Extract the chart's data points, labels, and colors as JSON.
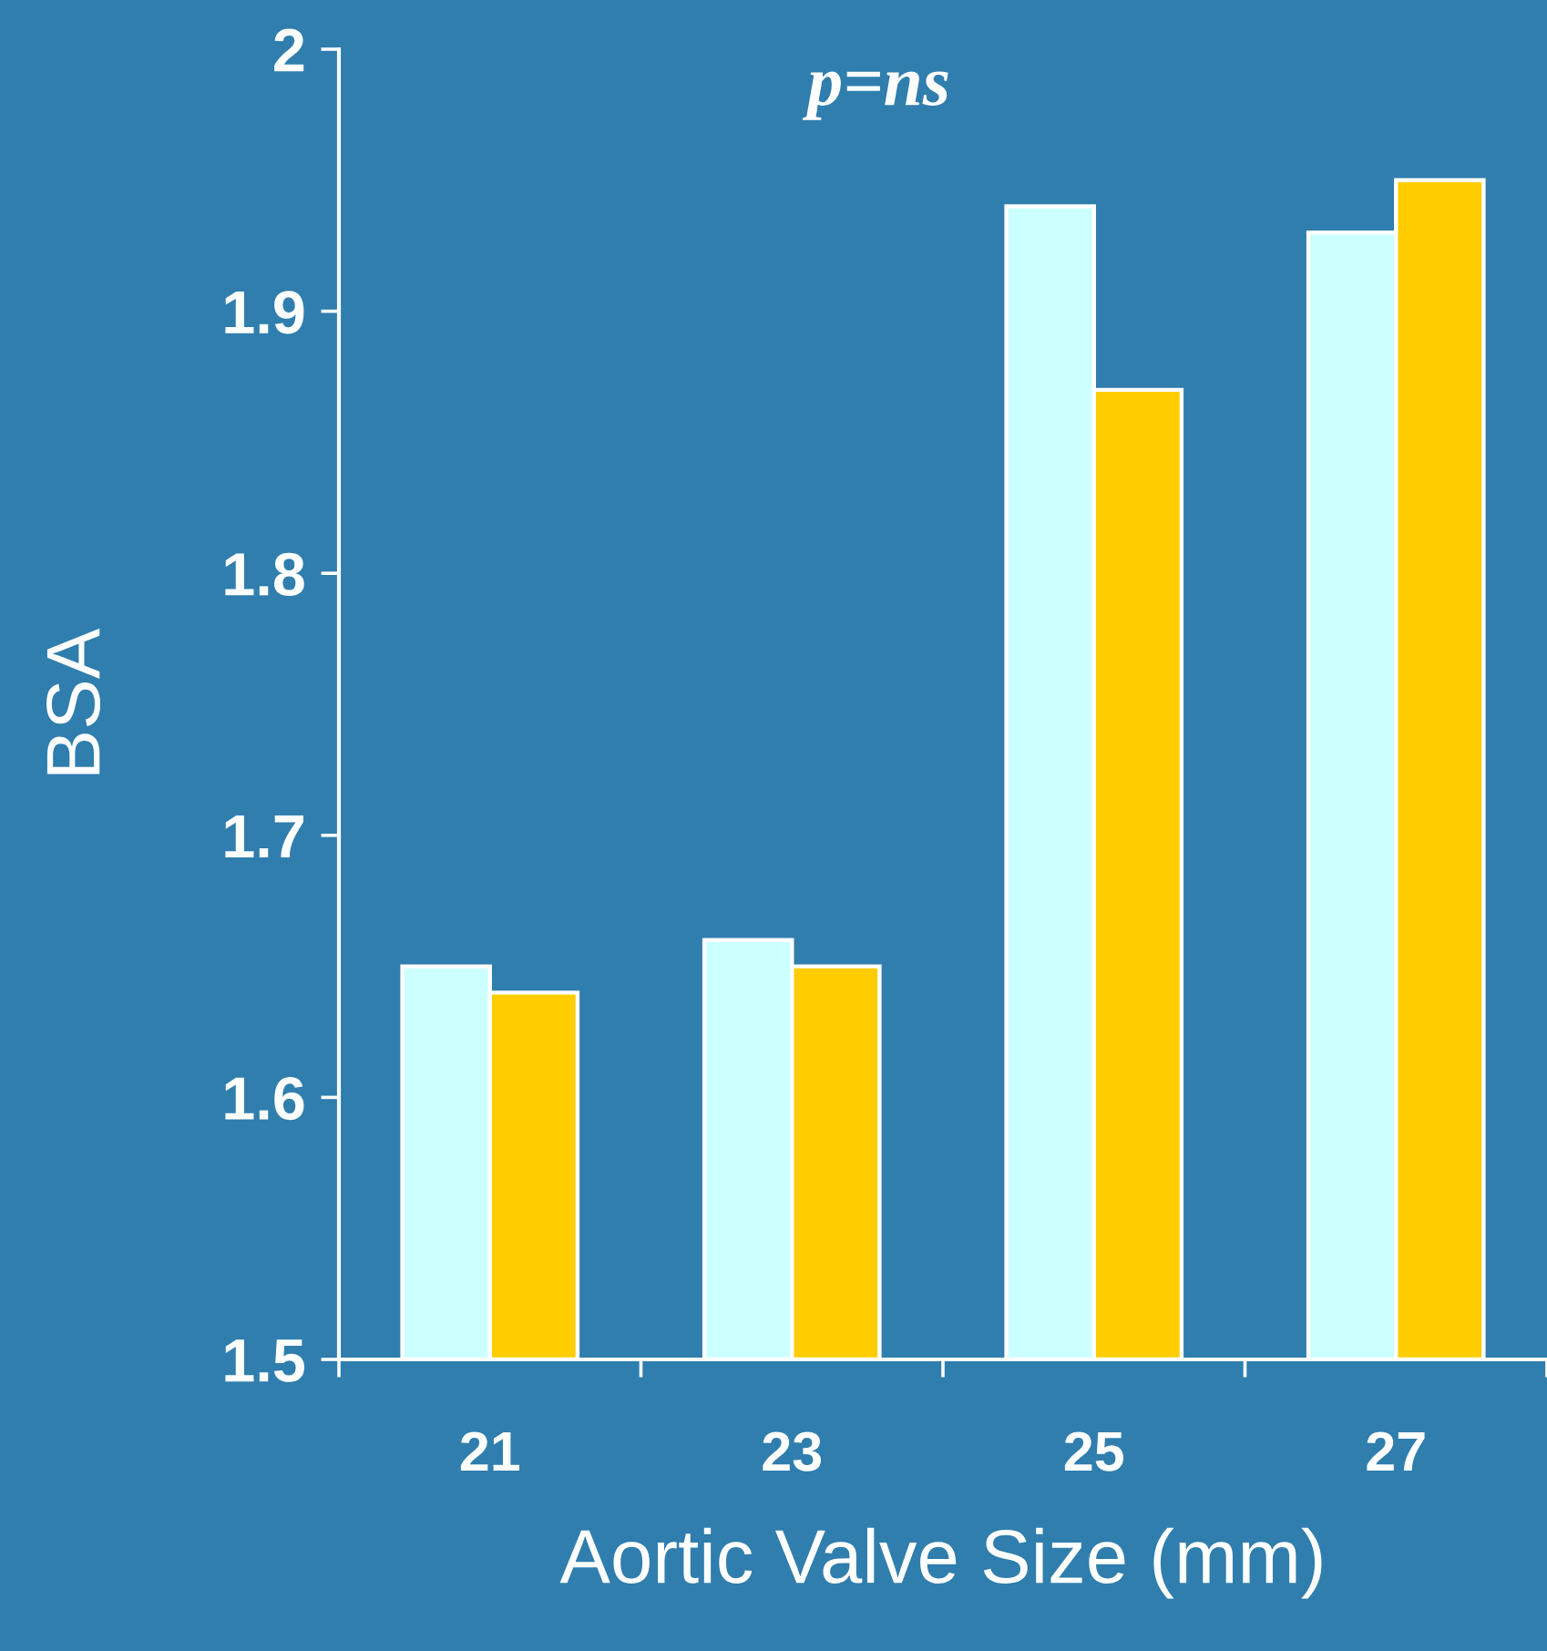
{
  "chart_data": {
    "type": "bar",
    "xlabel": "Aortic Valve Size (mm)",
    "ylabel": "BSA",
    "categories": [
      "21",
      "23",
      "25",
      "27"
    ],
    "series": [
      {
        "color": "#ccffff",
        "values": [
          1.65,
          1.66,
          1.94,
          1.93
        ]
      },
      {
        "color": "#ffcc00",
        "values": [
          1.64,
          1.65,
          1.87,
          1.95
        ]
      }
    ],
    "ylim": [
      1.5,
      2
    ],
    "yticks": [
      1.5,
      1.6,
      1.7,
      1.8,
      1.9,
      2
    ],
    "annotations": [
      "p=ns"
    ],
    "grid": false,
    "legend": false
  }
}
